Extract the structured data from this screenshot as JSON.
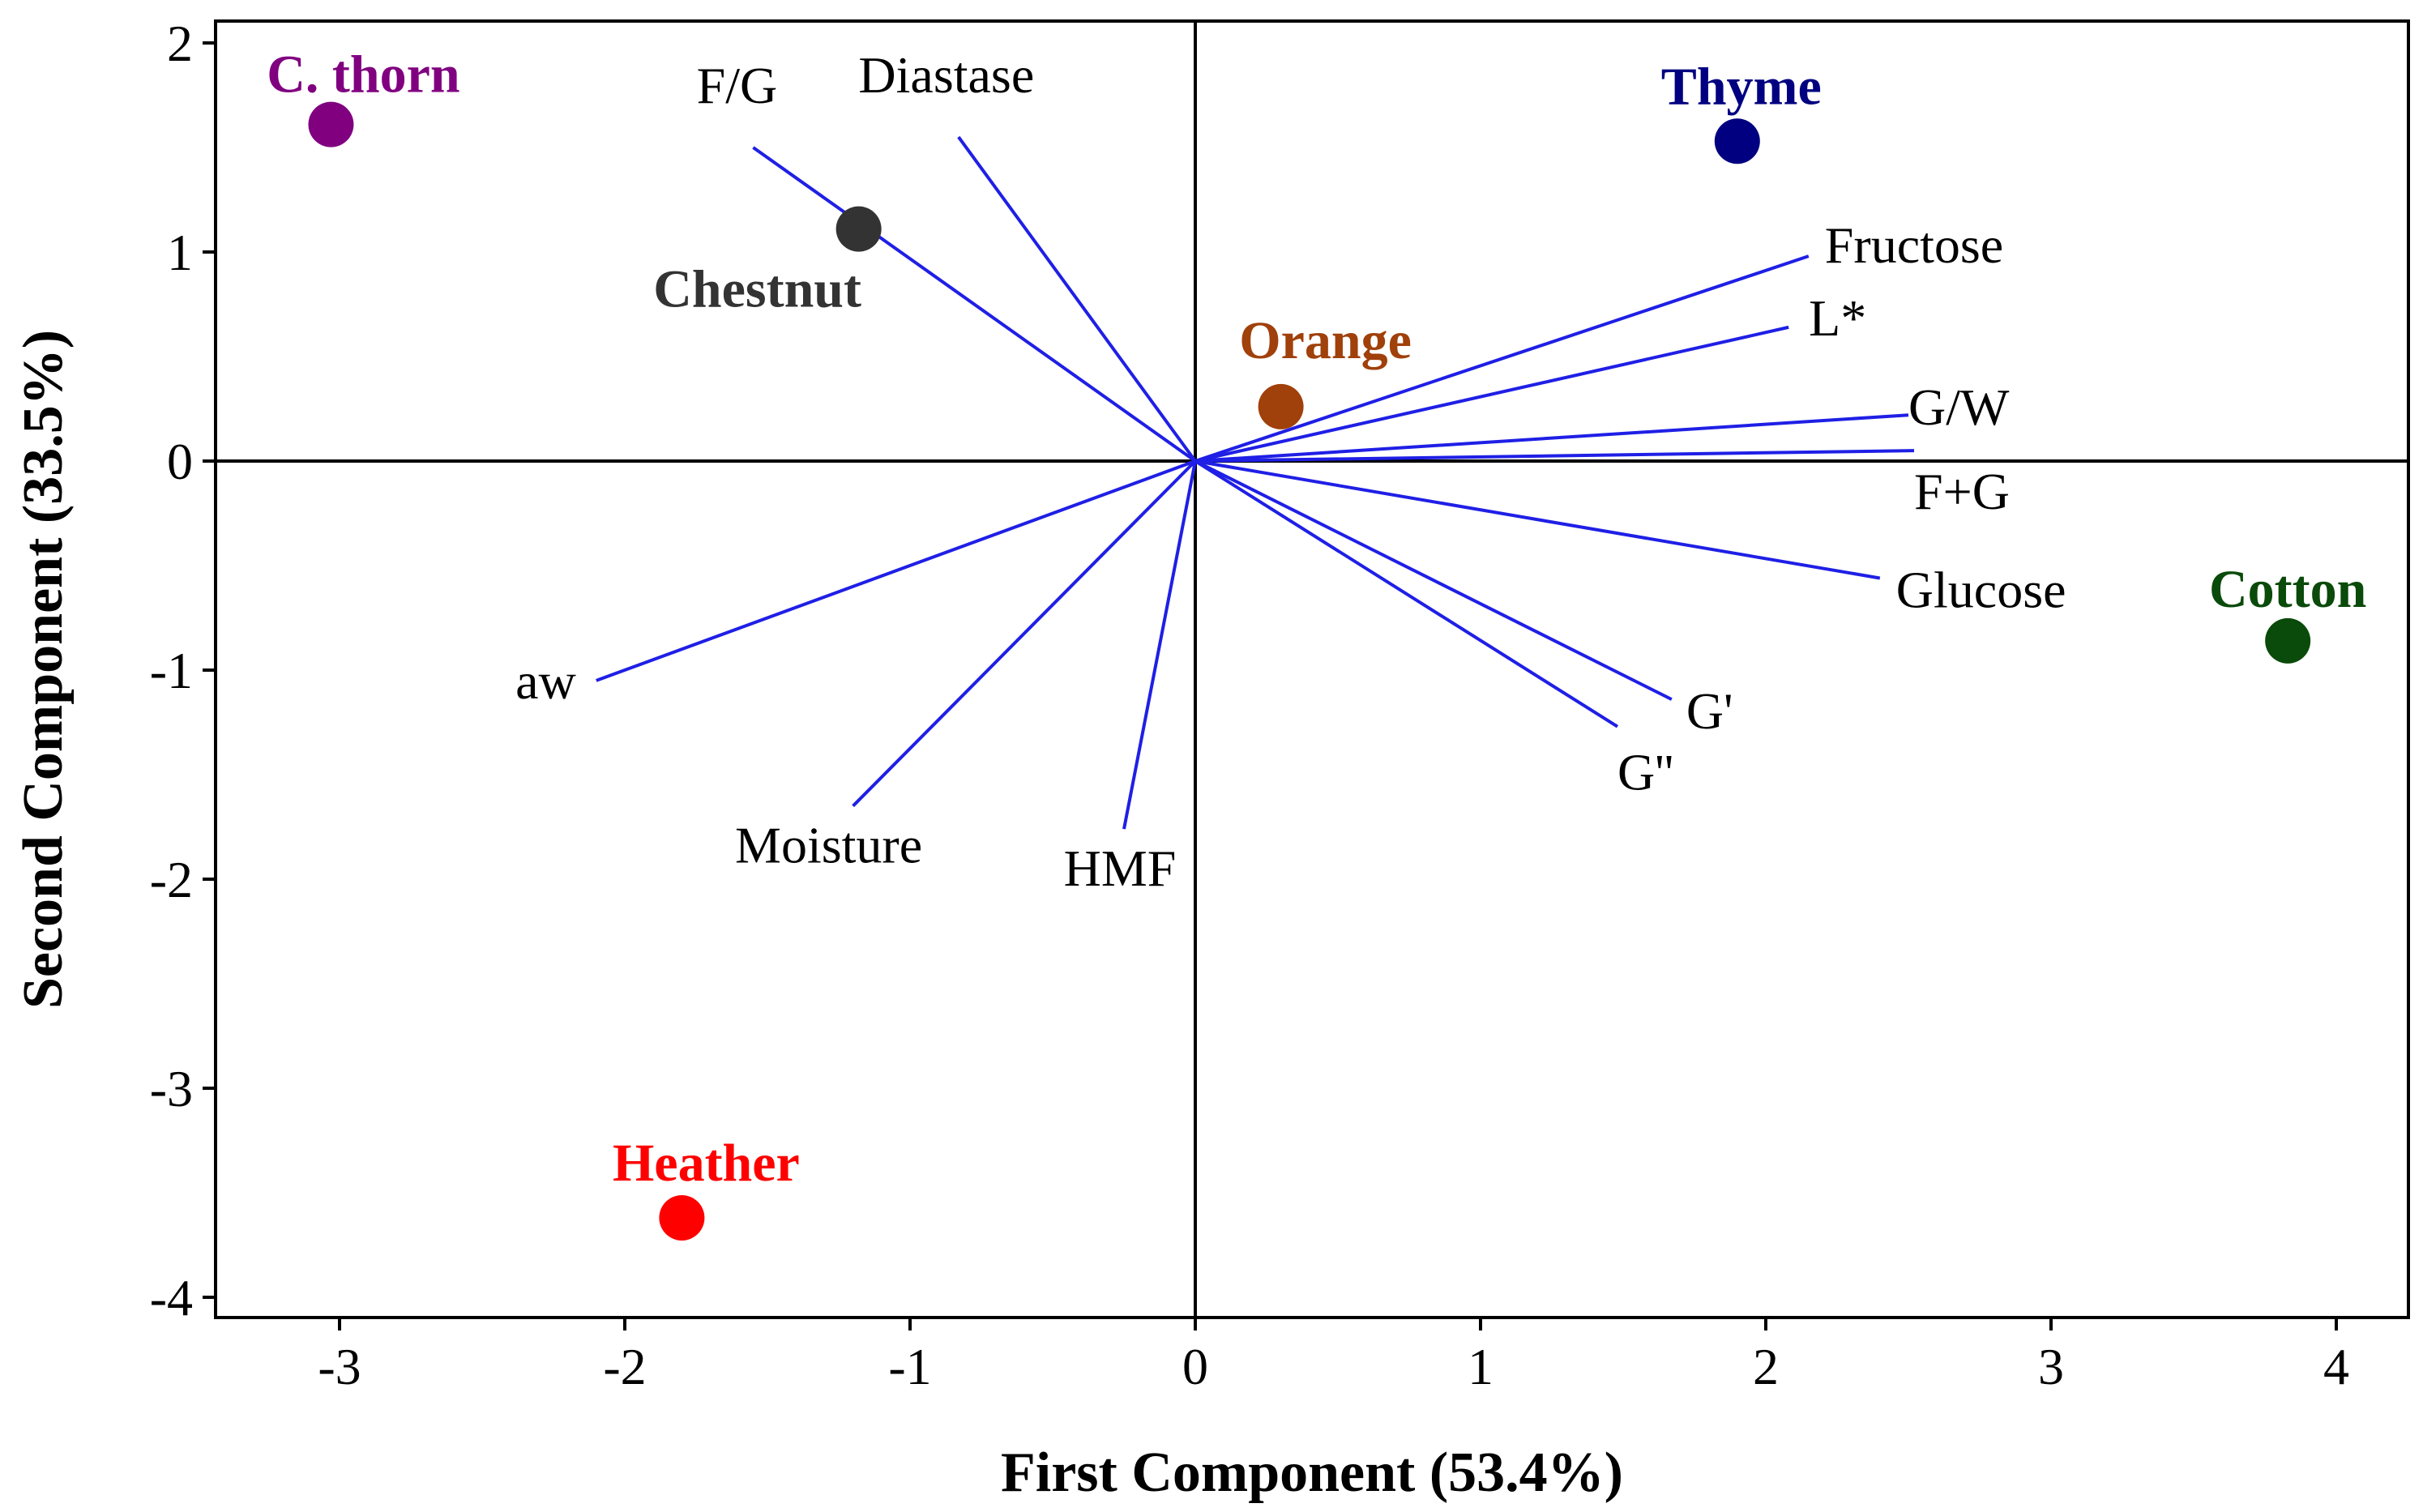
{
  "chart_data": {
    "type": "scatter",
    "subtype": "pca-biplot",
    "title": "",
    "xlabel": "First Component (53.4%)",
    "ylabel": "Second Component (33.5%)",
    "xlim": [
      -3.45,
      4.25
    ],
    "ylim": [
      -4.1,
      2.1
    ],
    "x_ticks": [
      -3,
      -2,
      -1,
      0,
      1,
      2,
      3,
      4
    ],
    "y_ticks": [
      -4,
      -3,
      -2,
      -1,
      0,
      1,
      2
    ],
    "reference_lines": {
      "x": 0,
      "y": 0
    },
    "grid": false,
    "legend": "none",
    "loading_color": "#1f1fe6",
    "loadings": [
      {
        "name": "F/G",
        "x": -1.55,
        "y": 1.5
      },
      {
        "name": "Diastase",
        "x": -0.83,
        "y": 1.55
      },
      {
        "name": "Fructose",
        "x": 2.15,
        "y": 0.98
      },
      {
        "name": "L*",
        "x": 2.08,
        "y": 0.64
      },
      {
        "name": "G/W",
        "x": 2.5,
        "y": 0.22
      },
      {
        "name": "F+G",
        "x": 2.52,
        "y": 0.05
      },
      {
        "name": "Glucose",
        "x": 2.4,
        "y": -0.56
      },
      {
        "name": "G'",
        "x": 1.67,
        "y": -1.14
      },
      {
        "name": "G''",
        "x": 1.48,
        "y": -1.27
      },
      {
        "name": "HMF",
        "x": -0.25,
        "y": -1.76
      },
      {
        "name": "Moisture",
        "x": -1.2,
        "y": -1.65
      },
      {
        "name": "aw",
        "x": -2.1,
        "y": -1.05
      }
    ],
    "scores": [
      {
        "name": "C. thorn",
        "x": -3.03,
        "y": 1.61,
        "color": "#800080"
      },
      {
        "name": "Chestnut",
        "x": -1.18,
        "y": 1.11,
        "color": "#333333"
      },
      {
        "name": "Thyme",
        "x": 1.9,
        "y": 1.53,
        "color": "#000080"
      },
      {
        "name": "Orange",
        "x": 0.3,
        "y": 0.26,
        "color": "#a0400a"
      },
      {
        "name": "Cotton",
        "x": 3.83,
        "y": -0.86,
        "color": "#0a4a0a"
      },
      {
        "name": "Heather",
        "x": -1.8,
        "y": -3.62,
        "color": "#ff0000"
      }
    ]
  }
}
